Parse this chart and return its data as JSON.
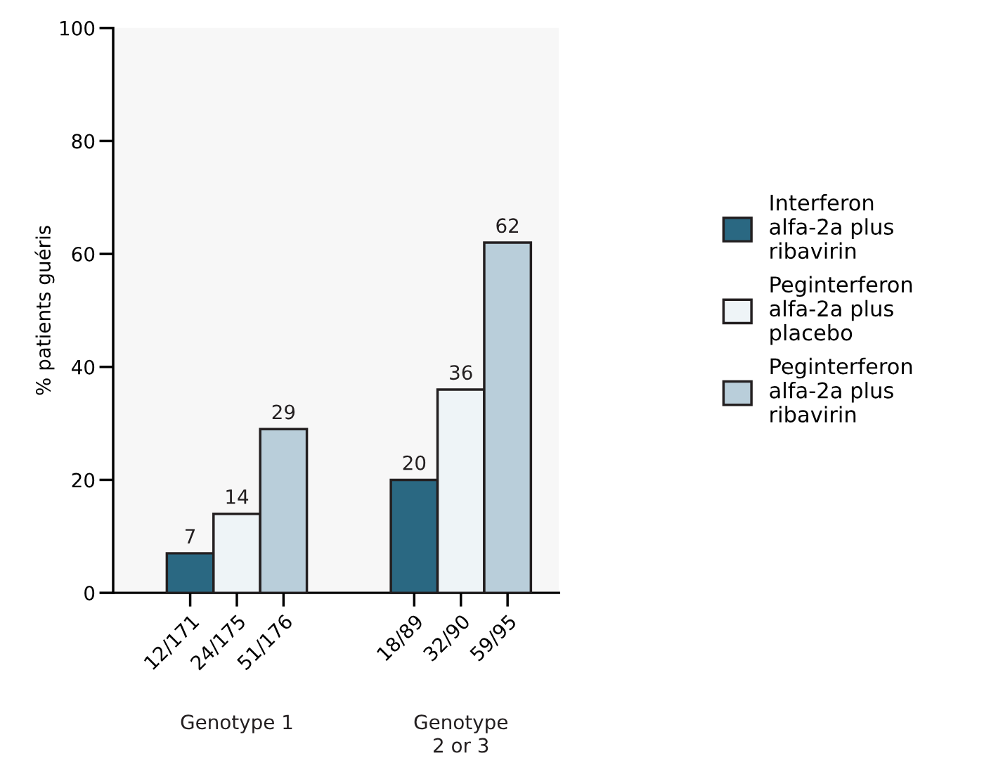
{
  "chart_data": {
    "type": "bar",
    "ylabel": "% patients guéris",
    "categories": [
      "12/171",
      "24/175",
      "51/176",
      "18/89",
      "32/90",
      "59/95"
    ],
    "series": [
      {
        "name": "Interferon\nalfa-2a plus\nribavirin",
        "color": "#2a6882",
        "values": [
          7,
          null,
          null,
          20,
          null,
          null
        ]
      },
      {
        "name": "Peginterferon\nalfa-2a plus\nplacebo",
        "color": "#eef4f7",
        "values": [
          null,
          14,
          null,
          null,
          36,
          null
        ]
      },
      {
        "name": "Peginterferon\nalfa-2a plus\nribavirin",
        "color": "#b9ceda",
        "values": [
          null,
          null,
          29,
          null,
          null,
          62
        ]
      }
    ],
    "ylim": [
      0,
      100
    ],
    "yticks": [
      0,
      20,
      40,
      60,
      80,
      100
    ],
    "data_labels": true,
    "grid": false,
    "legend": "right",
    "annotations": [
      "Genotype 1",
      "Genotype\n2 or 3"
    ]
  }
}
